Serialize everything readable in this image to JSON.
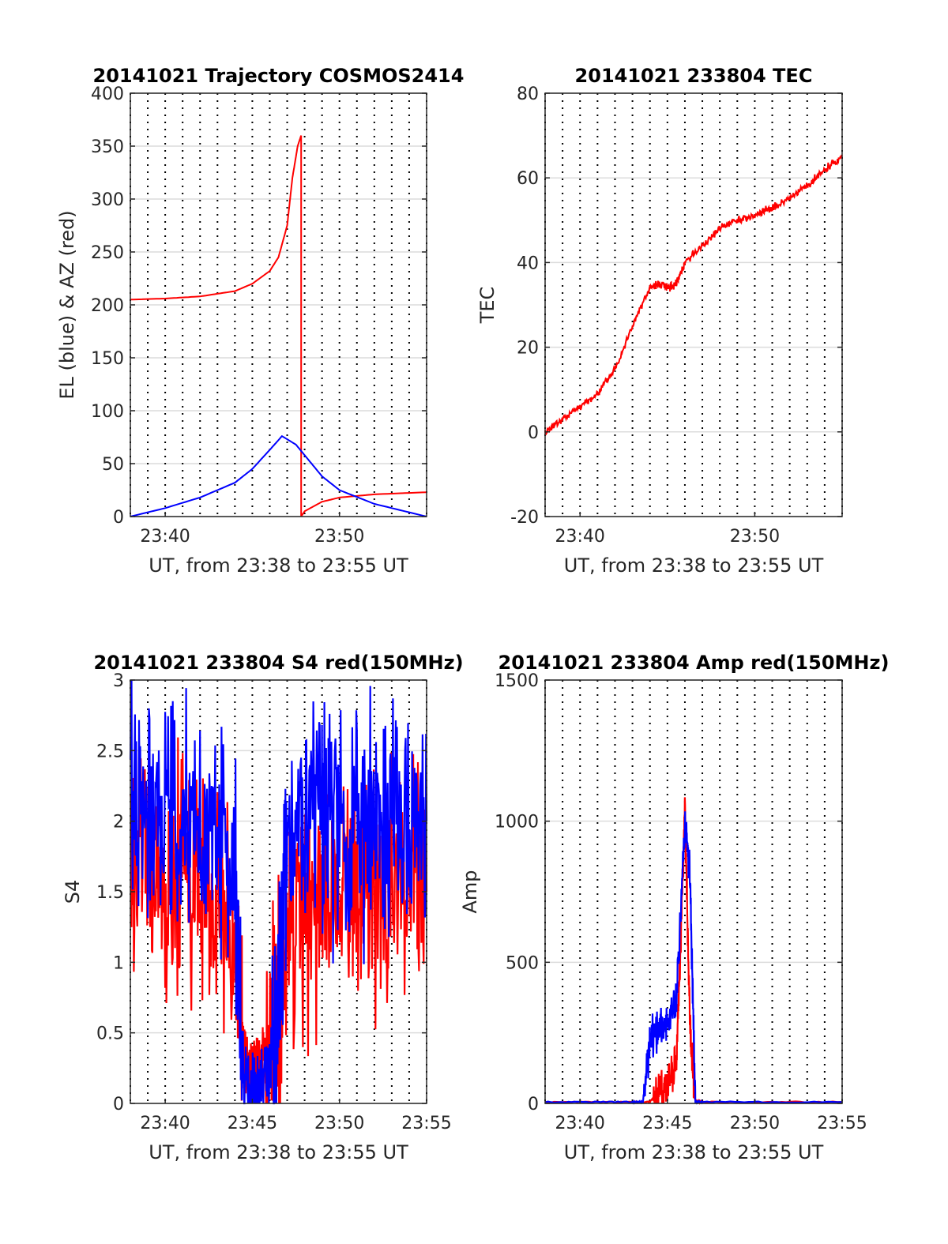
{
  "colors": {
    "red": "#ff0000",
    "blue": "#0000ff",
    "grid": "#dcdcdc",
    "axis": "#262626"
  },
  "chart_data": [
    {
      "type": "line",
      "title": "20141021 Trajectory COSMOS2414",
      "xlabel": "UT, from 23:38 to 23:55 UT",
      "ylabel": "EL (blue) & AZ (red)",
      "xlim": [
        "23:38",
        "23:55"
      ],
      "ylim": [
        0,
        400
      ],
      "yticks": [
        "0",
        "50",
        "100",
        "150",
        "200",
        "250",
        "300",
        "350",
        "400"
      ],
      "xticks": [
        "23:40",
        "23:50"
      ],
      "grid": true,
      "series": [
        {
          "color": "red",
          "x": [
            "23:38",
            "23:40",
            "23:42",
            "23:44",
            "23:45",
            "23:46",
            "23:46.5",
            "23:47",
            "23:47.3",
            "23:47.6",
            "23:47.8",
            "23:47.8",
            "23:48",
            "23:49",
            "23:50",
            "23:52",
            "23:55"
          ],
          "y": [
            205,
            206,
            208,
            213,
            220,
            232,
            245,
            275,
            320,
            350,
            360,
            0,
            5,
            14,
            18,
            21,
            23
          ]
        },
        {
          "color": "blue",
          "x": [
            "23:38",
            "23:40",
            "23:42",
            "23:44",
            "23:45",
            "23:46",
            "23:46.7",
            "23:47.5",
            "23:48",
            "23:49",
            "23:50",
            "23:52",
            "23:55"
          ],
          "y": [
            0,
            8,
            18,
            32,
            45,
            63,
            76,
            68,
            58,
            38,
            25,
            12,
            0
          ]
        }
      ]
    },
    {
      "type": "line",
      "title": "20141021 233804 TEC",
      "xlabel": "UT, from 23:38 to 23:55 UT",
      "ylabel": "TEC",
      "xlim": [
        "23:38",
        "23:55"
      ],
      "ylim": [
        -20,
        80
      ],
      "yticks": [
        "-20",
        "0",
        "20",
        "40",
        "60",
        "80"
      ],
      "xticks": [
        "23:40",
        "23:50"
      ],
      "grid": true,
      "series": [
        {
          "color": "red",
          "x": [
            "23:38",
            "23:39",
            "23:40",
            "23:41",
            "23:42",
            "23:43",
            "23:44",
            "23:44.5",
            "23:45",
            "23:45.5",
            "23:46",
            "23:47",
            "23:48",
            "23:49",
            "23:50",
            "23:51",
            "23:52",
            "23:53",
            "23:54",
            "23:55"
          ],
          "y": [
            0,
            3,
            6,
            9,
            15,
            25,
            34,
            35,
            34,
            35,
            40,
            44,
            48,
            50,
            51,
            53,
            55,
            58,
            62,
            65
          ]
        }
      ]
    },
    {
      "type": "line",
      "title": "20141021 233804 S4 red(150MHz)",
      "xlabel": "UT, from 23:38 to 23:55 UT",
      "ylabel": "S4",
      "xlim": [
        "23:38",
        "23:55"
      ],
      "ylim": [
        0,
        3
      ],
      "yticks": [
        "0",
        "0.5",
        "1",
        "1.5",
        "2",
        "2.5",
        "3"
      ],
      "xticks": [
        "23:40",
        "23:45",
        "23:50",
        "23:55"
      ],
      "grid": true,
      "series": [
        {
          "color": "red",
          "x": [
            "23:38",
            "23:39",
            "23:40",
            "23:41",
            "23:42",
            "23:43",
            "23:44",
            "23:44.5",
            "23:45",
            "23:45.5",
            "23:46",
            "23:46.5",
            "23:47",
            "23:48",
            "23:49",
            "23:50",
            "23:51",
            "23:52",
            "23:53",
            "23:54",
            "23:55"
          ],
          "y": [
            1.9,
            1.8,
            1.7,
            1.6,
            1.5,
            1.3,
            1.0,
            0.3,
            0.2,
            0.3,
            0.5,
            0.8,
            1.2,
            1.3,
            1.4,
            1.5,
            1.5,
            1.5,
            1.5,
            1.5,
            1.5
          ]
        },
        {
          "color": "blue",
          "x": [
            "23:38",
            "23:39",
            "23:40",
            "23:41",
            "23:42",
            "23:43",
            "23:44",
            "23:44.5",
            "23:45",
            "23:45.5",
            "23:46",
            "23:46.5",
            "23:47",
            "23:48",
            "23:49",
            "23:50",
            "23:51",
            "23:52",
            "23:53",
            "23:54",
            "23:55"
          ],
          "y": [
            2.2,
            2.1,
            2.0,
            2.0,
            1.9,
            1.8,
            1.6,
            0.2,
            0.12,
            0.15,
            0.2,
            0.9,
            1.8,
            2.0,
            2.0,
            1.9,
            1.9,
            2.0,
            2.0,
            2.0,
            2.0
          ]
        }
      ]
    },
    {
      "type": "line",
      "title": "20141021 233804 Amp red(150MHz)",
      "xlabel": "UT, from 23:38 to 23:55 UT",
      "ylabel": "Amp",
      "xlim": [
        "23:38",
        "23:55"
      ],
      "ylim": [
        0,
        1500
      ],
      "yticks": [
        "0",
        "500",
        "1000",
        "1500"
      ],
      "xticks": [
        "23:40",
        "23:45",
        "23:50",
        "23:55"
      ],
      "grid": true,
      "series": [
        {
          "color": "red",
          "x": [
            "23:38",
            "23:43",
            "23:44",
            "23:44.5",
            "23:45",
            "23:45.5",
            "23:45.8",
            "23:46",
            "23:46.3",
            "23:46.6",
            "23:47",
            "23:55"
          ],
          "y": [
            5,
            5,
            5,
            40,
            80,
            150,
            650,
            1050,
            250,
            10,
            5,
            5
          ]
        },
        {
          "color": "blue",
          "x": [
            "23:38",
            "23:43",
            "23:43.6",
            "23:44",
            "23:44.5",
            "23:45",
            "23:45.5",
            "23:46",
            "23:46.3",
            "23:46.6",
            "23:47",
            "23:55"
          ],
          "y": [
            5,
            5,
            5,
            220,
            260,
            300,
            350,
            1000,
            800,
            5,
            5,
            5
          ]
        }
      ]
    }
  ]
}
